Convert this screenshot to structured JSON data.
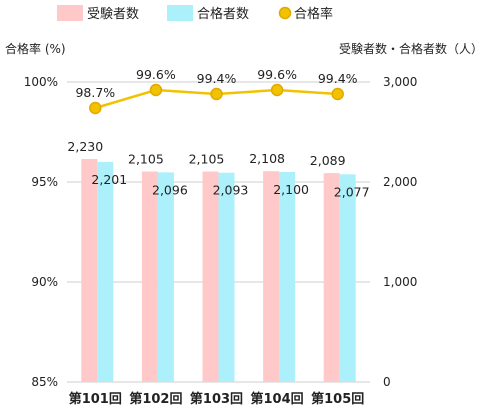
{
  "chart_data": {
    "type": "bar",
    "categories": [
      "第101回",
      "第102回",
      "第103回",
      "第104回",
      "第105回"
    ],
    "series": [
      {
        "name": "受験者数",
        "kind": "bar",
        "axis": "right",
        "color": "#FFC9C9",
        "values": [
          2230,
          2105,
          2105,
          2108,
          2089
        ],
        "labels": [
          "2,230",
          "2,105",
          "2,105",
          "2,108",
          "2,089"
        ]
      },
      {
        "name": "合格者数",
        "kind": "bar",
        "axis": "right",
        "color": "#ABF0FA",
        "values": [
          2201,
          2096,
          2093,
          2100,
          2077
        ],
        "labels": [
          "2,201",
          "2,096",
          "2,093",
          "2,100",
          "2,077"
        ]
      },
      {
        "name": "合格率",
        "kind": "line",
        "axis": "left",
        "color": "#F2C200",
        "stroke": "#E0A800",
        "values": [
          98.7,
          99.6,
          99.4,
          99.6,
          99.4
        ],
        "labels": [
          "98.7%",
          "99.6%",
          "99.4%",
          "99.6%",
          "99.4%"
        ]
      }
    ],
    "y_left": {
      "label": "合格率 (%)",
      "ylim": [
        85,
        100
      ],
      "ticks": [
        100,
        95,
        90,
        85
      ],
      "tick_labels": [
        "100%",
        "95%",
        "90%",
        "85%"
      ]
    },
    "y_right": {
      "label": "受験者数・合格者数（人）",
      "ylim": [
        0,
        3000
      ],
      "ticks": [
        3000,
        2000,
        1000,
        0
      ],
      "tick_labels": [
        "3,000",
        "2,000",
        "1,000",
        "0"
      ]
    },
    "grid": true,
    "legend_position": "top"
  }
}
